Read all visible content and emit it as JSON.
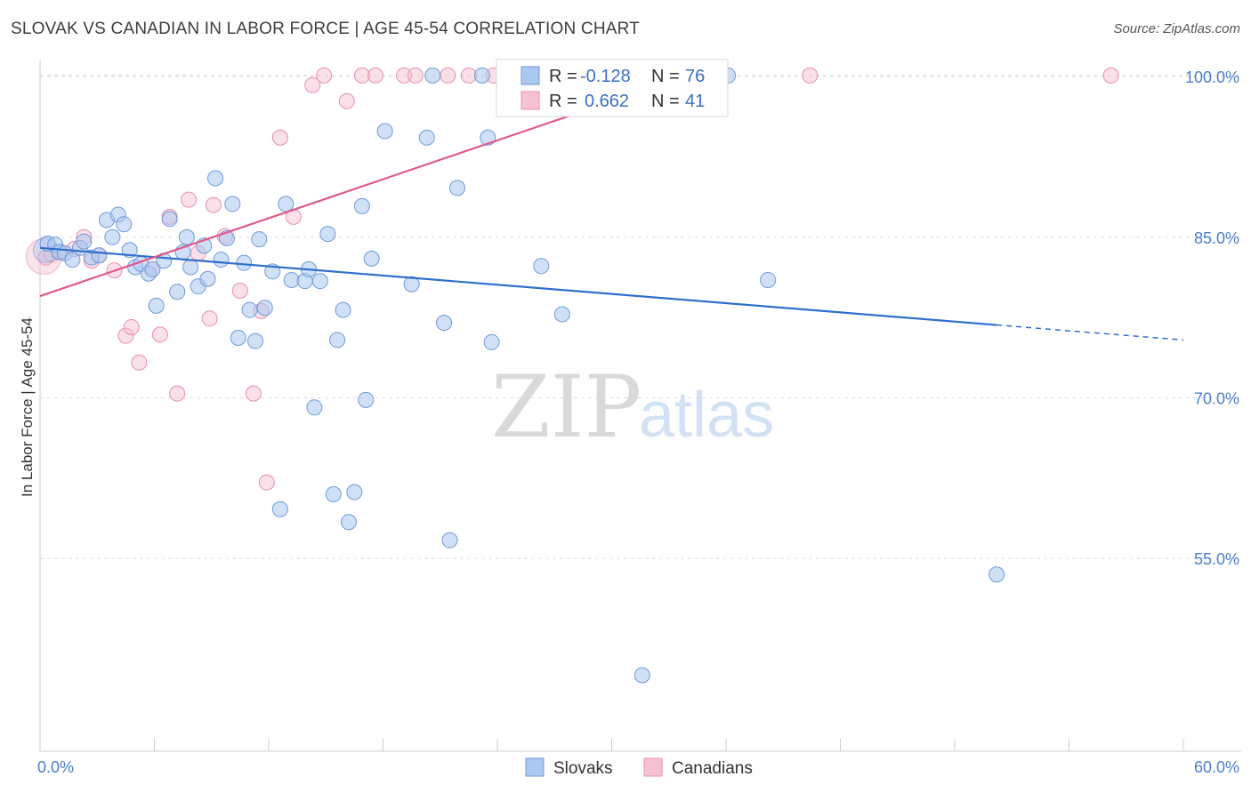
{
  "title": "SLOVAK VS CANADIAN IN LABOR FORCE | AGE 45-54 CORRELATION CHART",
  "source": "Source: ZipAtlas.com",
  "watermark": {
    "zip": "ZIP",
    "atlas": "atlas"
  },
  "colors": {
    "blue_fill": "#aac8f0",
    "blue_stroke": "#6f9ad8",
    "blue_line": "#2f6fcc",
    "pink_fill": "#f6c2d3",
    "pink_stroke": "#ea8fad",
    "pink_line": "#e0588a",
    "grid": "#dddddd",
    "axis_label": "#4a7fcb"
  },
  "legend": {
    "r_label": "R =",
    "n_label": "N =",
    "series": [
      {
        "r": "-0.128",
        "n": "76"
      },
      {
        "r": "0.662",
        "n": "41"
      }
    ]
  },
  "bottom_legend": [
    "Slovaks",
    "Canadians"
  ],
  "chart_data": {
    "type": "scatter",
    "title": "SLOVAK VS CANADIAN IN LABOR FORCE | AGE 45-54 CORRELATION CHART",
    "xlabel": "",
    "ylabel": "In Labor Force | Age 45-54",
    "xlim": [
      0,
      60
    ],
    "ylim": [
      37,
      101.5
    ],
    "x_tick_labels": [
      "0.0%",
      "60.0%"
    ],
    "y_ticks": [
      55,
      70,
      85,
      100
    ],
    "y_tick_labels": [
      "55.0%",
      "70.0%",
      "85.0%",
      "100.0%"
    ],
    "grid": true,
    "series": [
      {
        "name": "Slovaks",
        "trend": {
          "x0": 0,
          "y0": 84.0,
          "x1": 50.2,
          "y1": 76.8,
          "dashed_to_x": 60,
          "dashed_to_y": 75.4
        },
        "points": [
          [
            0.4,
            84.4
          ],
          [
            0.8,
            84.3
          ],
          [
            1.0,
            83.6
          ],
          [
            1.3,
            83.5
          ],
          [
            1.7,
            82.9
          ],
          [
            2.1,
            84.0
          ],
          [
            2.3,
            84.6
          ],
          [
            2.7,
            83.1
          ],
          [
            3.1,
            83.3
          ],
          [
            3.5,
            86.6
          ],
          [
            3.8,
            85.0
          ],
          [
            4.1,
            87.1
          ],
          [
            4.4,
            86.2
          ],
          [
            4.7,
            83.8
          ],
          [
            5.0,
            82.2
          ],
          [
            5.3,
            82.5
          ],
          [
            5.7,
            81.6
          ],
          [
            5.9,
            82.0
          ],
          [
            6.1,
            78.6
          ],
          [
            6.5,
            82.8
          ],
          [
            6.8,
            86.7
          ],
          [
            7.2,
            79.9
          ],
          [
            7.5,
            83.6
          ],
          [
            7.7,
            85.0
          ],
          [
            7.9,
            82.2
          ],
          [
            8.3,
            80.4
          ],
          [
            8.6,
            84.2
          ],
          [
            8.8,
            81.1
          ],
          [
            9.2,
            90.5
          ],
          [
            9.5,
            82.9
          ],
          [
            9.8,
            84.9
          ],
          [
            10.1,
            88.1
          ],
          [
            10.4,
            75.6
          ],
          [
            10.7,
            82.6
          ],
          [
            11.0,
            78.2
          ],
          [
            11.3,
            75.3
          ],
          [
            11.5,
            84.8
          ],
          [
            11.8,
            78.4
          ],
          [
            12.2,
            81.8
          ],
          [
            12.6,
            59.6
          ],
          [
            12.9,
            88.1
          ],
          [
            13.2,
            81.0
          ],
          [
            13.9,
            80.9
          ],
          [
            14.1,
            82.0
          ],
          [
            14.4,
            69.1
          ],
          [
            14.7,
            80.9
          ],
          [
            15.1,
            85.3
          ],
          [
            15.4,
            61.0
          ],
          [
            15.6,
            75.4
          ],
          [
            15.9,
            78.2
          ],
          [
            16.2,
            58.4
          ],
          [
            16.5,
            61.2
          ],
          [
            16.9,
            87.9
          ],
          [
            17.1,
            69.8
          ],
          [
            17.4,
            83.0
          ],
          [
            18.1,
            94.9
          ],
          [
            19.5,
            80.6
          ],
          [
            20.3,
            94.3
          ],
          [
            20.6,
            100.1
          ],
          [
            21.2,
            77.0
          ],
          [
            21.5,
            56.7
          ],
          [
            21.9,
            89.6
          ],
          [
            23.2,
            100.1
          ],
          [
            23.5,
            94.3
          ],
          [
            23.7,
            75.2
          ],
          [
            25.2,
            100.1
          ],
          [
            26.3,
            82.3
          ],
          [
            27.4,
            77.8
          ],
          [
            28.0,
            100.1
          ],
          [
            31.6,
            44.1
          ],
          [
            36.1,
            100.1
          ],
          [
            38.2,
            81.0
          ],
          [
            50.2,
            53.5
          ]
        ]
      },
      {
        "name": "Canadians",
        "trend": {
          "x0": 0,
          "y0": 79.5,
          "x1": 34.0,
          "y1": 100.1
        },
        "points": [
          [
            0.3,
            83.1
          ],
          [
            0.6,
            83.4
          ],
          [
            1.1,
            83.6
          ],
          [
            1.8,
            83.9
          ],
          [
            2.3,
            85.0
          ],
          [
            2.7,
            82.8
          ],
          [
            3.1,
            83.3
          ],
          [
            3.9,
            81.9
          ],
          [
            4.5,
            75.8
          ],
          [
            4.8,
            76.6
          ],
          [
            5.2,
            73.3
          ],
          [
            5.9,
            82.0
          ],
          [
            6.3,
            75.9
          ],
          [
            6.8,
            86.9
          ],
          [
            7.2,
            70.4
          ],
          [
            7.8,
            88.5
          ],
          [
            8.3,
            83.5
          ],
          [
            8.9,
            77.4
          ],
          [
            9.1,
            88.0
          ],
          [
            9.7,
            85.1
          ],
          [
            10.5,
            80.0
          ],
          [
            11.2,
            70.4
          ],
          [
            11.6,
            78.1
          ],
          [
            11.9,
            62.1
          ],
          [
            12.6,
            94.3
          ],
          [
            13.3,
            86.9
          ],
          [
            14.3,
            99.2
          ],
          [
            14.9,
            100.1
          ],
          [
            16.1,
            97.7
          ],
          [
            16.9,
            100.1
          ],
          [
            17.6,
            100.1
          ],
          [
            19.1,
            100.1
          ],
          [
            19.7,
            100.1
          ],
          [
            21.4,
            100.1
          ],
          [
            22.5,
            100.1
          ],
          [
            23.8,
            100.1
          ],
          [
            34.0,
            100.1
          ],
          [
            40.4,
            100.1
          ],
          [
            56.2,
            100.1
          ]
        ]
      }
    ]
  }
}
